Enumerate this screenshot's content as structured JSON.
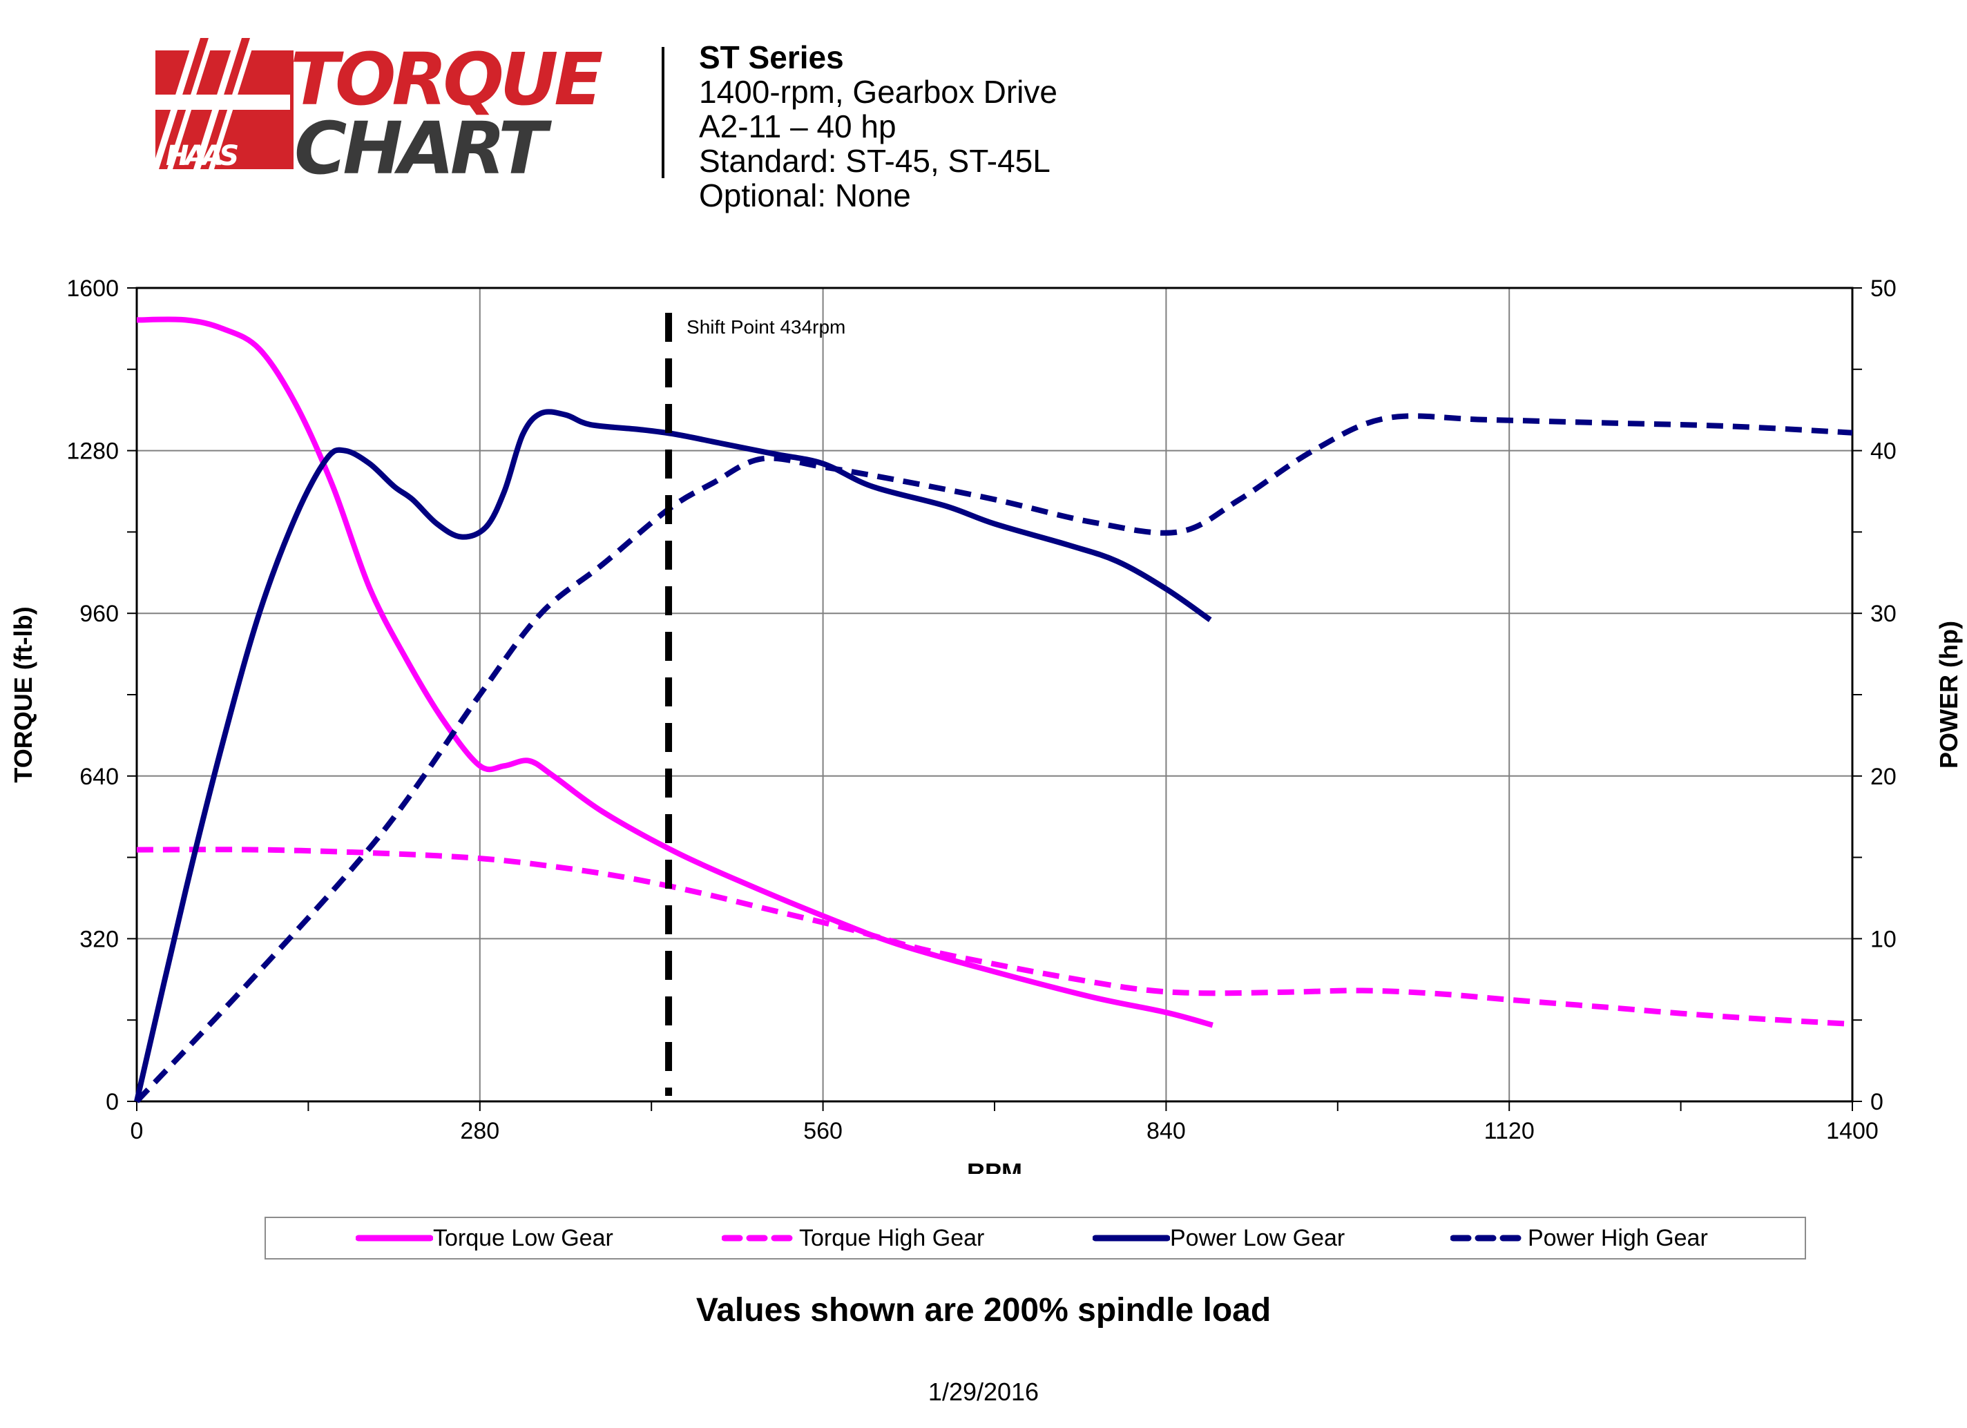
{
  "header": {
    "logo_text_top": "TORQUE",
    "logo_text_bottom": "CHART",
    "logo_brand": "HAAS",
    "title": "ST Series",
    "line1": "1400-rpm, Gearbox Drive",
    "line2": "A2-11 – 40 hp",
    "line3": "Standard: ST-45, ST-45L",
    "line4": "Optional: None"
  },
  "colors": {
    "torque": "#ff00ff",
    "power": "#000080",
    "brand_red": "#d2232a",
    "brand_dark": "#3a3a3a"
  },
  "footnote": "Values shown are 200% spindle load",
  "date": "1/29/2016",
  "chart_data": {
    "type": "line",
    "xlabel": "RPM",
    "ylabel": "TORQUE (ft-lb)",
    "y2label": "POWER (hp)",
    "xlim": [
      0,
      1400
    ],
    "ylim": [
      0,
      1600
    ],
    "y2lim": [
      0,
      50
    ],
    "xticks": [
      0,
      280,
      560,
      840,
      1120,
      1400
    ],
    "xticks_minor": [
      140,
      420,
      700,
      980,
      1260
    ],
    "yticks": [
      0,
      320,
      640,
      960,
      1280,
      1600
    ],
    "yticks_minor": [
      160,
      480,
      800,
      1120,
      1440
    ],
    "y2ticks": [
      0,
      10,
      20,
      30,
      40,
      50
    ],
    "y2ticks_minor": [
      5,
      15,
      25,
      35,
      45
    ],
    "grid": true,
    "legend_position": "bottom",
    "annotation": {
      "text": "Shift Point 434rpm",
      "x": 434
    },
    "series": [
      {
        "name": "Torque Low Gear",
        "axis": "left",
        "style": "solid",
        "color": "#ff00ff",
        "x": [
          0,
          40,
          70,
          100,
          130,
          160,
          190,
          220,
          250,
          280,
          300,
          320,
          340,
          380,
          440,
          500,
          560,
          620,
          700,
          780,
          840,
          878
        ],
        "y": [
          1537,
          1537,
          1520,
          1480,
          1370,
          1210,
          1010,
          870,
          750,
          660,
          660,
          670,
          640,
          570,
          490,
          425,
          365,
          310,
          255,
          205,
          175,
          150
        ]
      },
      {
        "name": "Torque High Gear",
        "axis": "left",
        "style": "dashed",
        "color": "#ff00ff",
        "x": [
          0,
          100,
          200,
          280,
          340,
          400,
          460,
          520,
          580,
          640,
          700,
          760,
          820,
          870,
          940,
          1000,
          1060,
          1120,
          1200,
          1260,
          1320,
          1400
        ],
        "y": [
          495,
          495,
          488,
          478,
          462,
          440,
          410,
          375,
          340,
          300,
          270,
          243,
          220,
          213,
          215,
          218,
          212,
          200,
          185,
          173,
          163,
          152
        ]
      },
      {
        "name": "Power Low Gear",
        "axis": "right",
        "style": "solid",
        "color": "#000080",
        "x": [
          0,
          40,
          70,
          100,
          130,
          155,
          170,
          190,
          210,
          225,
          245,
          265,
          285,
          300,
          315,
          330,
          350,
          370,
          410,
          440,
          480,
          520,
          560,
          600,
          660,
          700,
          760,
          800,
          840,
          876
        ],
        "y": [
          0,
          13,
          22,
          30,
          36,
          39.5,
          40,
          39.2,
          37.8,
          37,
          35.5,
          34.7,
          35.3,
          37.5,
          41,
          42.3,
          42.2,
          41.6,
          41.3,
          41,
          40.4,
          39.8,
          39.2,
          37.8,
          36.6,
          35.5,
          34.2,
          33.2,
          31.5,
          29.6
        ]
      },
      {
        "name": "Power High Gear",
        "axis": "right",
        "style": "dashed",
        "color": "#000080",
        "x": [
          0,
          100,
          200,
          280,
          330,
          380,
          434,
          470,
          510,
          560,
          620,
          700,
          780,
          850,
          900,
          960,
          1020,
          1100,
          1200,
          1300,
          1400
        ],
        "y": [
          0,
          8,
          16.5,
          25,
          30,
          33,
          36.4,
          38,
          39.5,
          39,
          38.2,
          37,
          35.6,
          35,
          37,
          40,
          42,
          41.9,
          41.7,
          41.5,
          41.1
        ]
      }
    ]
  }
}
